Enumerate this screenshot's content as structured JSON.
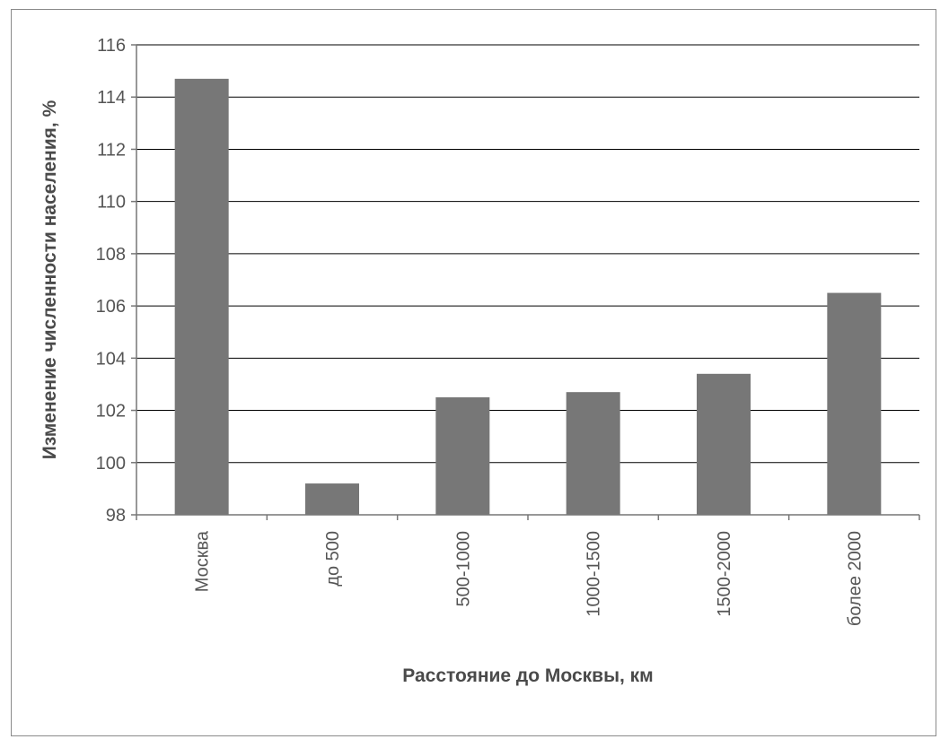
{
  "chart_data": {
    "type": "bar",
    "categories": [
      "Москва",
      "до 500",
      "500-1000",
      "1000-1500",
      "1500-2000",
      "более 2000"
    ],
    "values": [
      114.7,
      99.2,
      102.5,
      102.7,
      103.4,
      106.5
    ],
    "xlabel": "Расстояние до Москвы, км",
    "ylabel": "Изменение численности населения, %",
    "ylim": [
      98,
      116
    ],
    "yticks": [
      98,
      100,
      102,
      104,
      106,
      108,
      110,
      112,
      114,
      116
    ],
    "grid": true,
    "legend": "none"
  },
  "colors": {
    "bar": "#777777",
    "grid": "#000000",
    "axis": "#777777"
  }
}
